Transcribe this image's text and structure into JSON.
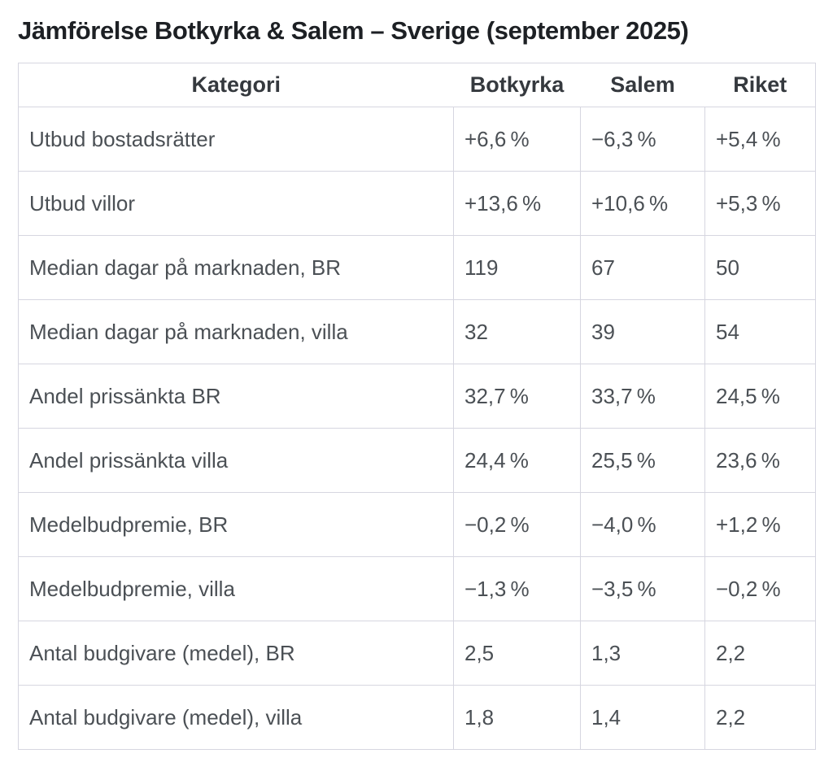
{
  "title": "Jämförelse Botkyrka & Salem – Sverige (september 2025)",
  "colors": {
    "background": "#ffffff",
    "border": "#d6d6e0",
    "title_text": "#1d2024",
    "header_text": "#35393e",
    "body_text": "#4b5055"
  },
  "table": {
    "headers": [
      "Kategori",
      "Botkyrka",
      "Salem",
      "Riket"
    ],
    "rows": [
      [
        "Utbud bostadsrätter",
        "+6,6 %",
        "−6,3 %",
        "+5,4 %"
      ],
      [
        "Utbud villor",
        "+13,6 %",
        "+10,6 %",
        "+5,3 %"
      ],
      [
        "Median dagar på marknaden, BR",
        "119",
        "67",
        "50"
      ],
      [
        "Median dagar på marknaden, villa",
        "32",
        "39",
        "54"
      ],
      [
        "Andel prissänkta BR",
        "32,7 %",
        "33,7 %",
        "24,5 %"
      ],
      [
        "Andel prissänkta villa",
        "24,4 %",
        "25,5 %",
        "23,6 %"
      ],
      [
        "Medelbudpremie, BR",
        "−0,2 %",
        "−4,0 %",
        "+1,2 %"
      ],
      [
        "Medelbudpremie, villa",
        "−1,3 %",
        "−3,5 %",
        "−0,2 %"
      ],
      [
        "Antal budgivare (medel), BR",
        "2,5",
        "1,3",
        "2,2"
      ],
      [
        "Antal budgivare (medel), villa",
        "1,8",
        "1,4",
        "2,2"
      ]
    ]
  },
  "chart_data": {
    "type": "table",
    "title": "Jämförelse Botkyrka & Salem – Sverige (september 2025)",
    "columns": [
      "Kategori",
      "Botkyrka",
      "Salem",
      "Riket"
    ],
    "rows": [
      {
        "kategori": "Utbud bostadsrätter",
        "botkyrka": "+6,6 %",
        "salem": "−6,3 %",
        "riket": "+5,4 %"
      },
      {
        "kategori": "Utbud villor",
        "botkyrka": "+13,6 %",
        "salem": "+10,6 %",
        "riket": "+5,3 %"
      },
      {
        "kategori": "Median dagar på marknaden, BR",
        "botkyrka": 119,
        "salem": 67,
        "riket": 50
      },
      {
        "kategori": "Median dagar på marknaden, villa",
        "botkyrka": 32,
        "salem": 39,
        "riket": 54
      },
      {
        "kategori": "Andel prissänkta BR",
        "botkyrka": "32,7 %",
        "salem": "33,7 %",
        "riket": "24,5 %"
      },
      {
        "kategori": "Andel prissänkta villa",
        "botkyrka": "24,4 %",
        "salem": "25,5 %",
        "riket": "23,6 %"
      },
      {
        "kategori": "Medelbudpremie, BR",
        "botkyrka": "−0,2 %",
        "salem": "−4,0 %",
        "riket": "+1,2 %"
      },
      {
        "kategori": "Medelbudpremie, villa",
        "botkyrka": "−1,3 %",
        "salem": "−3,5 %",
        "riket": "−0,2 %"
      },
      {
        "kategori": "Antal budgivare (medel), BR",
        "botkyrka": "2,5",
        "salem": "1,3",
        "riket": "2,2"
      },
      {
        "kategori": "Antal budgivare (medel), villa",
        "botkyrka": "1,8",
        "salem": "1,4",
        "riket": "2,2"
      }
    ]
  }
}
